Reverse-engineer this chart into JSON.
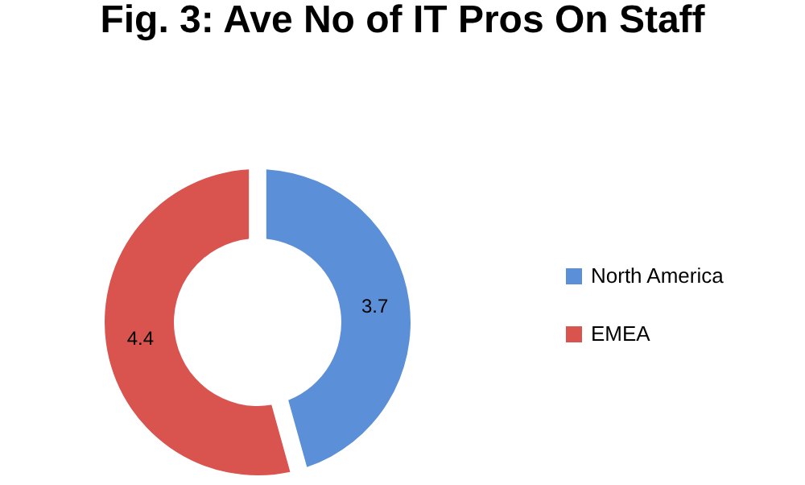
{
  "chart_data": {
    "type": "donut",
    "title": "Fig. 3: Ave No of IT Pros On Staff",
    "categories": [
      "North America",
      "EMEA"
    ],
    "values": [
      3.7,
      4.4
    ],
    "colors": [
      "#5b8fd8",
      "#d9534f"
    ],
    "data_labels": true,
    "legend": "right"
  }
}
